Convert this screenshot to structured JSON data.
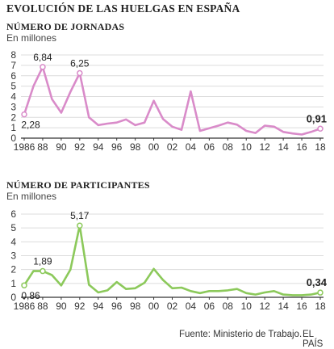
{
  "title": "EVOLUCIÓN DE LAS HUELGAS EN ESPAÑA",
  "source": "Fuente: Ministerio de Trabajo.",
  "brand": "EL PAÍS",
  "colors": {
    "jornadas": "#d98bc9",
    "participantes": "#8cc95b",
    "axis": "#333333",
    "grid": "#dcdcdc"
  },
  "chart_data": [
    {
      "type": "line",
      "title": "NÚMERO DE JORNADAS",
      "ylabel": "En millones",
      "ylim": [
        0,
        8
      ],
      "yticks": [
        0,
        1,
        2,
        3,
        4,
        5,
        6,
        7,
        8
      ],
      "xticks": [
        "1986",
        "88",
        "90",
        "92",
        "94",
        "96",
        "98",
        "00",
        "02",
        "04",
        "06",
        "08",
        "10",
        "12",
        "14",
        "16",
        "18"
      ],
      "x": [
        1986,
        1987,
        1988,
        1989,
        1990,
        1991,
        1992,
        1993,
        1994,
        1995,
        1996,
        1997,
        1998,
        1999,
        2000,
        2001,
        2002,
        2003,
        2004,
        2005,
        2006,
        2007,
        2008,
        2009,
        2010,
        2011,
        2012,
        2013,
        2014,
        2015,
        2016,
        2017,
        2018
      ],
      "values": [
        2.28,
        5.0,
        6.84,
        3.75,
        2.45,
        4.45,
        6.25,
        2.0,
        1.25,
        1.4,
        1.5,
        1.8,
        1.25,
        1.5,
        3.6,
        1.85,
        1.1,
        0.8,
        4.5,
        0.7,
        0.95,
        1.2,
        1.5,
        1.3,
        0.7,
        0.5,
        1.2,
        1.1,
        0.6,
        0.45,
        0.35,
        0.6,
        0.91
      ],
      "annotations": [
        {
          "x": 1986,
          "y": 2.28,
          "label": "2,28",
          "pos": "below"
        },
        {
          "x": 1988,
          "y": 6.84,
          "label": "6,84",
          "pos": "above"
        },
        {
          "x": 1992,
          "y": 6.25,
          "label": "6,25",
          "pos": "above"
        },
        {
          "x": 2018,
          "y": 0.91,
          "label": "0,91",
          "pos": "above-left",
          "bold": true
        }
      ]
    },
    {
      "type": "line",
      "title": "NÚMERO DE PARTICIPANTES",
      "ylabel": "En millones",
      "ylim": [
        0,
        6
      ],
      "yticks": [
        0,
        1,
        2,
        3,
        4,
        5,
        6
      ],
      "xticks": [
        "1986",
        "88",
        "90",
        "92",
        "94",
        "96",
        "98",
        "00",
        "02",
        "04",
        "06",
        "08",
        "10",
        "12",
        "14",
        "16",
        "18"
      ],
      "x": [
        1986,
        1987,
        1988,
        1989,
        1990,
        1991,
        1992,
        1993,
        1994,
        1995,
        1996,
        1997,
        1998,
        1999,
        2000,
        2001,
        2002,
        2003,
        2004,
        2005,
        2006,
        2007,
        2008,
        2009,
        2010,
        2011,
        2012,
        2013,
        2014,
        2015,
        2016,
        2017,
        2018
      ],
      "values": [
        0.86,
        1.9,
        1.89,
        1.6,
        0.85,
        2.0,
        5.17,
        0.9,
        0.35,
        0.5,
        1.1,
        0.6,
        0.65,
        1.05,
        2.05,
        1.25,
        0.65,
        0.7,
        0.45,
        0.3,
        0.45,
        0.45,
        0.5,
        0.6,
        0.3,
        0.2,
        0.35,
        0.45,
        0.2,
        0.15,
        0.15,
        0.2,
        0.34
      ],
      "annotations": [
        {
          "x": 1986,
          "y": 0.86,
          "label": "0,86",
          "pos": "below"
        },
        {
          "x": 1988,
          "y": 1.89,
          "label": "1,89",
          "pos": "above"
        },
        {
          "x": 1992,
          "y": 5.17,
          "label": "5,17",
          "pos": "above"
        },
        {
          "x": 2018,
          "y": 0.34,
          "label": "0,34",
          "pos": "above-left",
          "bold": true
        }
      ]
    }
  ]
}
